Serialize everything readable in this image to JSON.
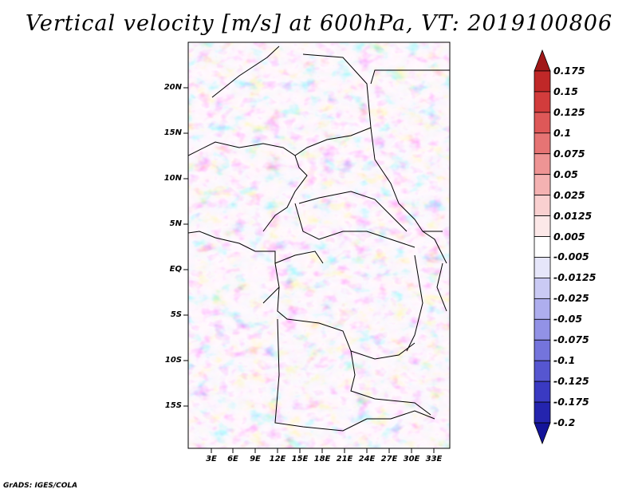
{
  "title": "Vertical velocity [m/s] at 600hPa, VT: 2019100806",
  "credit": "GrADS: IGES/COLA",
  "y_axis_labels": [
    "20N",
    "15N",
    "10N",
    "5N",
    "EQ",
    "5S",
    "10S",
    "15S"
  ],
  "x_axis_labels": [
    "3E",
    "6E",
    "9E",
    "12E",
    "15E",
    "18E",
    "21E",
    "24E",
    "27E",
    "30E",
    "33E"
  ],
  "colorbar": {
    "labels": [
      "0.175",
      "0.15",
      "0.125",
      "0.1",
      "0.075",
      "0.05",
      "0.025",
      "0.0125",
      "0.005",
      "-0.005",
      "-0.0125",
      "-0.025",
      "-0.05",
      "-0.075",
      "-0.1",
      "-0.125",
      "-0.175",
      "-0.2"
    ],
    "colors": [
      "#a01818",
      "#c02828",
      "#d23c3c",
      "#de5858",
      "#e67474",
      "#ee9494",
      "#f4b2b2",
      "#f9d0d0",
      "#fce8e8",
      "#ffffff",
      "#e6e6fa",
      "#cacaf4",
      "#aeaeee",
      "#9292e6",
      "#7474dc",
      "#5656d0",
      "#3a3ac2",
      "#2424ae",
      "#14149a"
    ]
  }
}
